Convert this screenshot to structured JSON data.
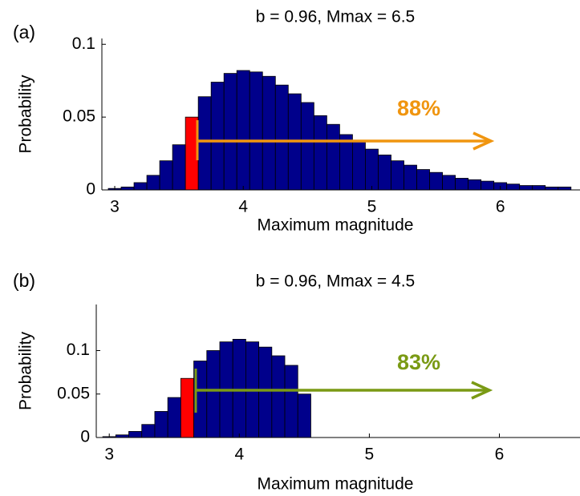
{
  "chart_data": [
    {
      "type": "histogram",
      "panel_label": "(a)",
      "title": "b = 0.96, Mmax = 6.5",
      "xlabel": "Maximum magnitude",
      "ylabel": "Probability",
      "bins": [
        2.95,
        3.05,
        3.15,
        3.25,
        3.35,
        3.45,
        3.55,
        3.65,
        3.75,
        3.85,
        3.95,
        4.05,
        4.15,
        4.25,
        4.35,
        4.45,
        4.55,
        4.65,
        4.75,
        4.85,
        4.95,
        5.05,
        5.15,
        5.25,
        5.35,
        5.45,
        5.55,
        5.65,
        5.75,
        5.85,
        5.95,
        6.05,
        6.15,
        6.25,
        6.35,
        6.45,
        6.55
      ],
      "values": [
        0.001,
        0.002,
        0.005,
        0.01,
        0.02,
        0.031,
        0.05,
        0.064,
        0.074,
        0.08,
        0.082,
        0.081,
        0.078,
        0.072,
        0.066,
        0.06,
        0.051,
        0.045,
        0.038,
        0.033,
        0.028,
        0.024,
        0.02,
        0.017,
        0.014,
        0.012,
        0.01,
        0.008,
        0.007,
        0.006,
        0.005,
        0.004,
        0.003,
        0.003,
        0.002,
        0.002
      ],
      "color": "#00008b",
      "highlight_color": "#ff0000",
      "highlight_bins": [
        6
      ],
      "xlim": [
        2.9,
        6.62
      ],
      "ylim": [
        0,
        0.104
      ],
      "xticks": [
        3,
        4,
        5,
        6
      ],
      "yticks": [
        0,
        0.05,
        0.1
      ],
      "annotation": {
        "text": "88%",
        "color": "#f0950f"
      }
    },
    {
      "type": "histogram",
      "panel_label": "(b)",
      "title": "b = 0.96, Mmax = 4.5",
      "xlabel": "Maximum magnitude",
      "ylabel": "Probability",
      "bins": [
        2.95,
        3.05,
        3.15,
        3.25,
        3.35,
        3.45,
        3.55,
        3.65,
        3.75,
        3.85,
        3.95,
        4.05,
        4.15,
        4.25,
        4.35,
        4.45,
        4.55
      ],
      "values": [
        0.001,
        0.003,
        0.007,
        0.015,
        0.03,
        0.046,
        0.068,
        0.088,
        0.1,
        0.11,
        0.113,
        0.11,
        0.104,
        0.094,
        0.083,
        0.05
      ],
      "color": "#00008b",
      "highlight_color": "#ff0000",
      "highlight_bins": [
        6
      ],
      "xlim": [
        2.9,
        6.62
      ],
      "ylim": [
        0,
        0.153
      ],
      "xticks": [
        3,
        4,
        5,
        6
      ],
      "yticks": [
        0,
        0.05,
        0.1
      ],
      "annotation": {
        "text": "83%",
        "color": "#7a9a14"
      }
    }
  ]
}
